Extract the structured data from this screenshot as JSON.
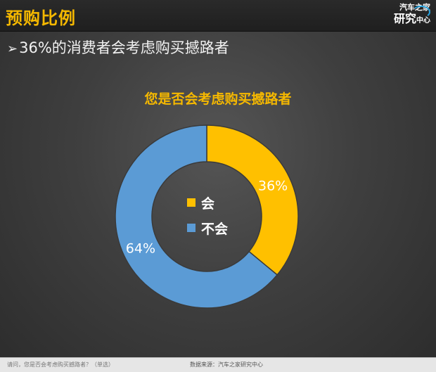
{
  "header": {
    "title": "预购比例",
    "logo": {
      "line1": "汽车之家",
      "line2_main": "研究",
      "line2_sub": "中心"
    }
  },
  "headline": {
    "arrow": "➢",
    "text": "36%的消费者会考虑购买撼路者"
  },
  "colors": {
    "yes": "#ffc000",
    "no": "#5b9bd5",
    "accent": "#f5b800"
  },
  "chart_data": {
    "type": "pie",
    "donut": true,
    "title": "您是否会考虑购买撼路者",
    "legend_position": "center",
    "series": [
      {
        "name": "会",
        "value": 36,
        "label": "36%",
        "color": "#ffc000"
      },
      {
        "name": "不会",
        "value": 64,
        "label": "64%",
        "color": "#5b9bd5"
      }
    ]
  },
  "footer": {
    "question": "请问，您是否会考虑购买撼路者？（单选）",
    "source": "数据来源：汽车之家研究中心"
  }
}
